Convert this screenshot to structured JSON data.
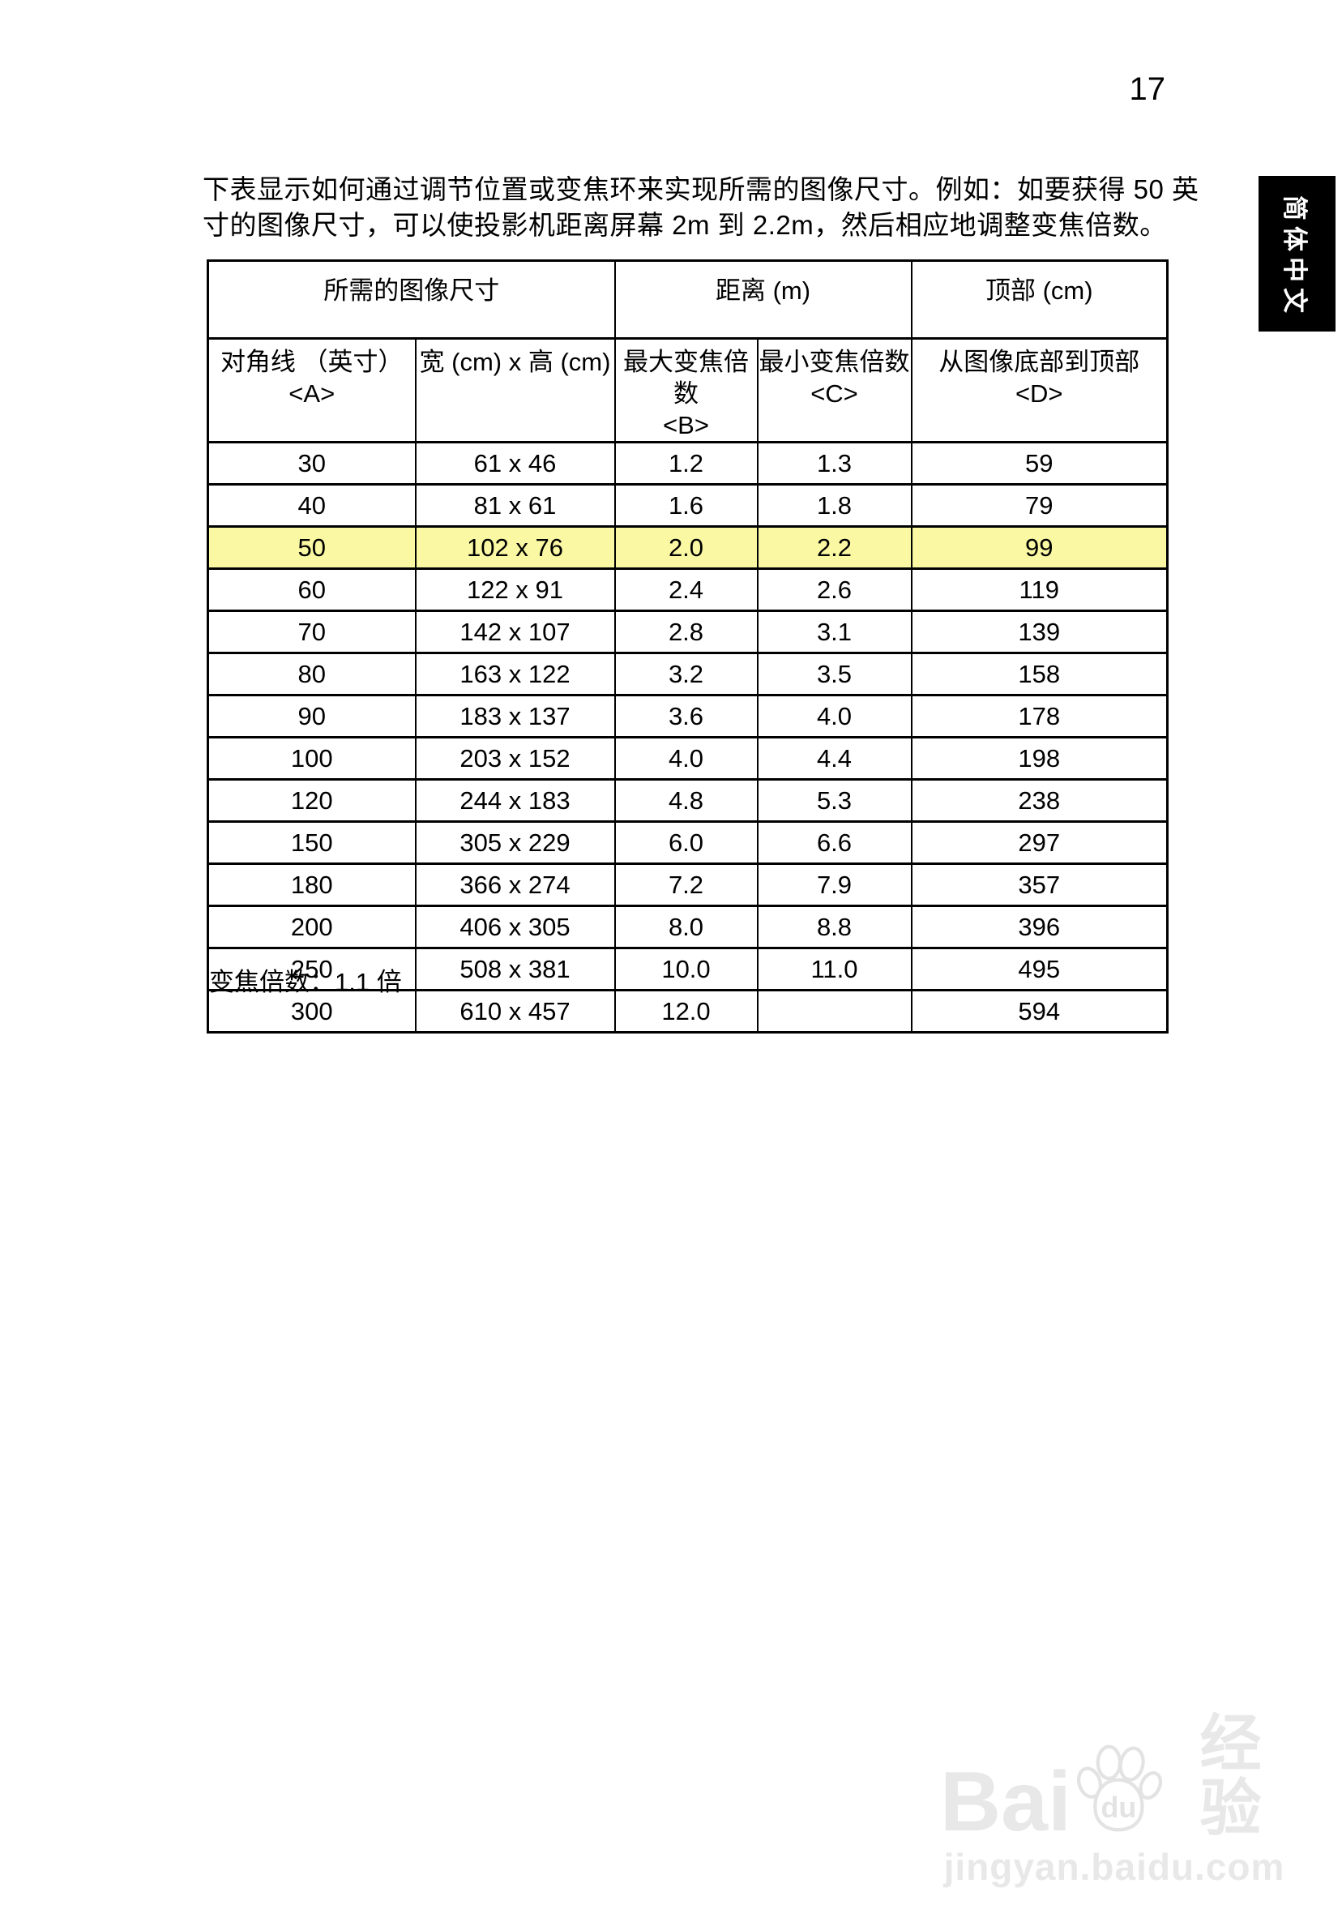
{
  "page": {
    "number": "17"
  },
  "sidebar_tab": {
    "label": "简体中文"
  },
  "intro": {
    "line1": "下表显示如何通过调节位置或变焦环来实现所需的图像尺寸。例如：如要获得 50 英",
    "line2": "寸的图像尺寸，可以使投影机距离屏幕 2m 到 2.2m，然后相应地调整变焦倍数。"
  },
  "table": {
    "group_headers": [
      {
        "label": "所需的图像尺寸",
        "colspan": 2
      },
      {
        "label": "距离 (m)",
        "colspan": 2
      },
      {
        "label": "顶部 (cm)",
        "colspan": 1
      }
    ],
    "sub_headers": [
      {
        "line1": "对角线 （英寸）",
        "line2": "<A>"
      },
      {
        "line1": "宽 (cm) x 高 (cm)",
        "line2": ""
      },
      {
        "line1": "最大变焦倍数",
        "line2": "<B>"
      },
      {
        "line1": "最小变焦倍数",
        "line2": "<C>"
      },
      {
        "line1": "从图像底部到顶部 <D>",
        "line2": ""
      }
    ],
    "rows": [
      {
        "cells": [
          "30",
          "61 x 46",
          "1.2",
          "1.3",
          "59"
        ],
        "highlight": false
      },
      {
        "cells": [
          "40",
          "81 x 61",
          "1.6",
          "1.8",
          "79"
        ],
        "highlight": false
      },
      {
        "cells": [
          "50",
          "102 x 76",
          "2.0",
          "2.2",
          "99"
        ],
        "highlight": true
      },
      {
        "cells": [
          "60",
          "122 x 91",
          "2.4",
          "2.6",
          "119"
        ],
        "highlight": false
      },
      {
        "cells": [
          "70",
          "142 x 107",
          "2.8",
          "3.1",
          "139"
        ],
        "highlight": false
      },
      {
        "cells": [
          "80",
          "163 x 122",
          "3.2",
          "3.5",
          "158"
        ],
        "highlight": false
      },
      {
        "cells": [
          "90",
          "183 x 137",
          "3.6",
          "4.0",
          "178"
        ],
        "highlight": false
      },
      {
        "cells": [
          "100",
          "203 x 152",
          "4.0",
          "4.4",
          "198"
        ],
        "highlight": false
      },
      {
        "cells": [
          "120",
          "244 x 183",
          "4.8",
          "5.3",
          "238"
        ],
        "highlight": false
      },
      {
        "cells": [
          "150",
          "305 x 229",
          "6.0",
          "6.6",
          "297"
        ],
        "highlight": false
      },
      {
        "cells": [
          "180",
          "366 x 274",
          "7.2",
          "7.9",
          "357"
        ],
        "highlight": false
      },
      {
        "cells": [
          "200",
          "406 x 305",
          "8.0",
          "8.8",
          "396"
        ],
        "highlight": false
      },
      {
        "cells": [
          "250",
          "508 x 381",
          "10.0",
          "11.0",
          "495"
        ],
        "highlight": false
      },
      {
        "cells": [
          "300",
          "610 x 457",
          "12.0",
          "",
          "594"
        ],
        "highlight": false
      }
    ],
    "highlight_color": "#faf8a2",
    "note": "变焦倍数：1.1 倍"
  },
  "watermark": {
    "logo_bai": "Bai",
    "logo_du": "du",
    "logo_cn": "经验",
    "url": "jingyan.baidu.com",
    "color": "#e8e8e8"
  }
}
